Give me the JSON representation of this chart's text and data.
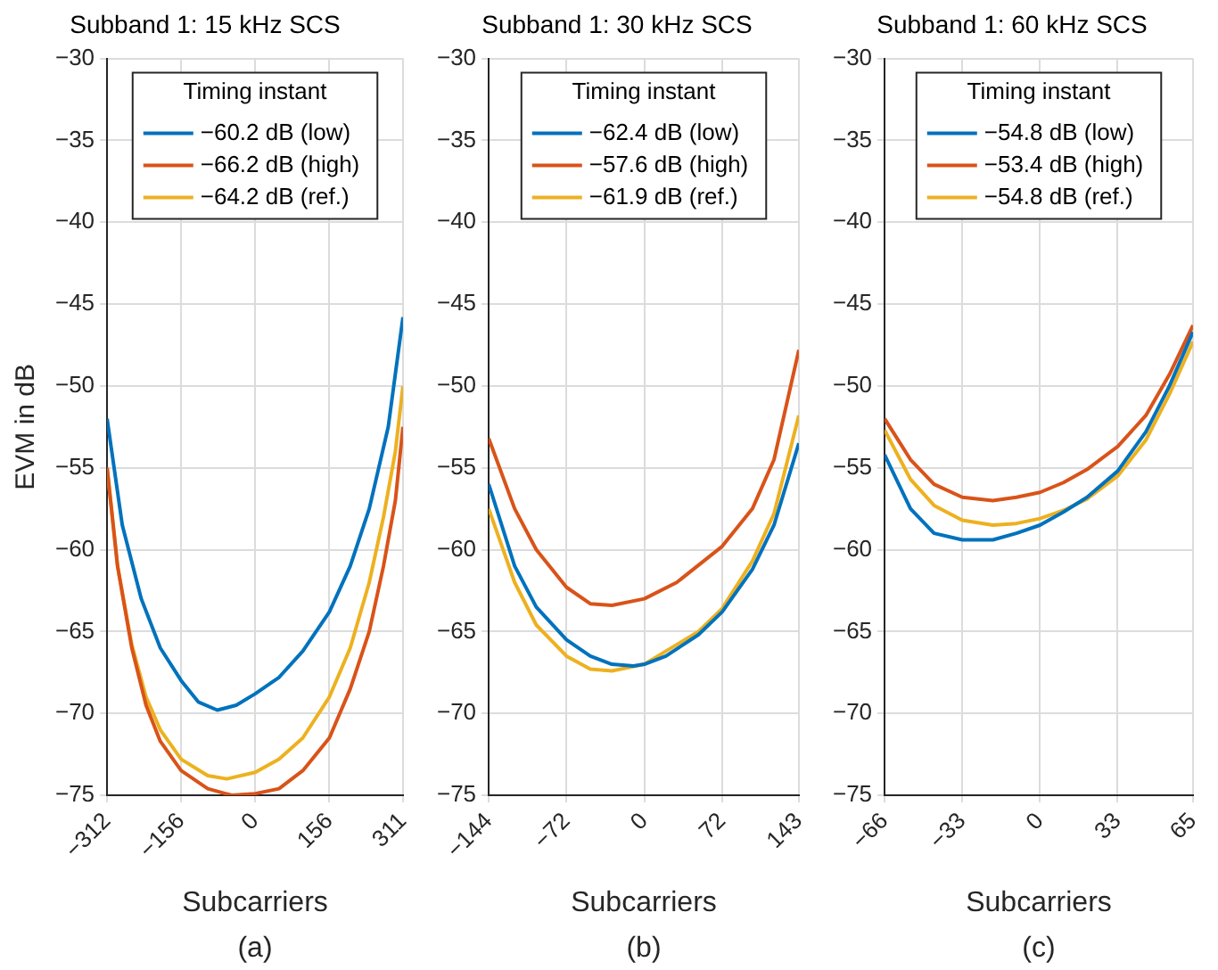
{
  "chart_data": [
    {
      "type": "line",
      "title": "Subband 1: 15 kHz SCS",
      "xlabel": "Subcarriers",
      "ylabel": "EVM in dB",
      "legend_title": "Timing instant",
      "annotations": [
        "(a)"
      ],
      "xlim": [
        -312,
        311
      ],
      "xticks": [
        -312,
        -156,
        0,
        156,
        311
      ],
      "ylim": [
        -75,
        -30
      ],
      "yticks": [
        -75,
        -70,
        -65,
        -60,
        -55,
        -50,
        -45,
        -40,
        -35,
        -30
      ],
      "grid": true,
      "legend": "top",
      "marker": "none",
      "line_style": "solid",
      "series": [
        {
          "name": "−60.2 dB (low)",
          "color": "#0072bd",
          "x": [
            -312,
            -280,
            -240,
            -200,
            -156,
            -120,
            -80,
            -40,
            0,
            50,
            100,
            156,
            200,
            240,
            280,
            311
          ],
          "values": [
            -52,
            -58.5,
            -63,
            -66,
            -68,
            -69.3,
            -69.8,
            -69.5,
            -68.8,
            -67.8,
            -66.2,
            -63.8,
            -61,
            -57.5,
            -52.5,
            -45.8
          ]
        },
        {
          "name": "−66.2 dB (high)",
          "color": "#d95319",
          "x": [
            -312,
            -290,
            -260,
            -230,
            -200,
            -156,
            -100,
            -50,
            0,
            50,
            100,
            156,
            200,
            240,
            270,
            295,
            311
          ],
          "values": [
            -55,
            -61,
            -66,
            -69.5,
            -71.7,
            -73.5,
            -74.6,
            -75,
            -74.9,
            -74.6,
            -73.5,
            -71.5,
            -68.5,
            -65,
            -61,
            -57,
            -52.5
          ]
        },
        {
          "name": "−64.2 dB (ref.)",
          "color": "#edb120",
          "x": [
            -312,
            -290,
            -260,
            -230,
            -200,
            -156,
            -100,
            -60,
            0,
            50,
            100,
            156,
            200,
            240,
            270,
            295,
            311
          ],
          "values": [
            -55,
            -61,
            -65.8,
            -69,
            -71,
            -72.8,
            -73.8,
            -74,
            -73.6,
            -72.8,
            -71.5,
            -69,
            -66,
            -62,
            -58,
            -54,
            -50
          ]
        }
      ]
    },
    {
      "type": "line",
      "title": "Subband 1: 30 kHz SCS",
      "xlabel": "Subcarriers",
      "legend_title": "Timing instant",
      "annotations": [
        "(b)"
      ],
      "xlim": [
        -144,
        143
      ],
      "xticks": [
        -144,
        -72,
        0,
        72,
        143
      ],
      "ylim": [
        -75,
        -30
      ],
      "yticks": [
        -75,
        -70,
        -65,
        -60,
        -55,
        -50,
        -45,
        -40,
        -35,
        -30
      ],
      "grid": true,
      "legend": "top",
      "marker": "none",
      "line_style": "solid",
      "series": [
        {
          "name": "−62.4 dB (low)",
          "color": "#0072bd",
          "x": [
            -144,
            -120,
            -100,
            -72,
            -50,
            -30,
            -10,
            0,
            20,
            50,
            72,
            100,
            120,
            143
          ],
          "values": [
            -56,
            -61,
            -63.5,
            -65.5,
            -66.5,
            -67,
            -67.1,
            -67,
            -66.5,
            -65.2,
            -63.8,
            -61.2,
            -58.5,
            -53.5
          ]
        },
        {
          "name": "−57.6 dB (high)",
          "color": "#d95319",
          "x": [
            -144,
            -120,
            -100,
            -72,
            -50,
            -30,
            0,
            30,
            72,
            100,
            120,
            143
          ],
          "values": [
            -53.2,
            -57.5,
            -60,
            -62.3,
            -63.3,
            -63.4,
            -63,
            -62,
            -59.8,
            -57.5,
            -54.5,
            -47.8
          ]
        },
        {
          "name": "−61.9 dB (ref.)",
          "color": "#edb120",
          "x": [
            -144,
            -120,
            -100,
            -72,
            -50,
            -30,
            0,
            20,
            50,
            72,
            100,
            120,
            143
          ],
          "values": [
            -57.5,
            -62,
            -64.6,
            -66.5,
            -67.3,
            -67.4,
            -67,
            -66.2,
            -65,
            -63.6,
            -60.7,
            -57.8,
            -51.8
          ]
        }
      ]
    },
    {
      "type": "line",
      "title": "Subband 1: 60 kHz SCS",
      "xlabel": "Subcarriers",
      "legend_title": "Timing instant",
      "annotations": [
        "(c)"
      ],
      "xlim": [
        -66,
        65
      ],
      "xticks": [
        -66,
        -33,
        0,
        33,
        65
      ],
      "ylim": [
        -75,
        -30
      ],
      "yticks": [
        -75,
        -70,
        -65,
        -60,
        -55,
        -50,
        -45,
        -40,
        -35,
        -30
      ],
      "grid": true,
      "legend": "top",
      "marker": "none",
      "line_style": "solid",
      "series": [
        {
          "name": "−54.8 dB (low)",
          "color": "#0072bd",
          "x": [
            -66,
            -55,
            -45,
            -33,
            -20,
            -10,
            0,
            10,
            20,
            33,
            45,
            55,
            65
          ],
          "values": [
            -54.2,
            -57.5,
            -59,
            -59.4,
            -59.4,
            -59,
            -58.5,
            -57.7,
            -56.8,
            -55.2,
            -52.8,
            -50,
            -46.7
          ]
        },
        {
          "name": "−53.4 dB (high)",
          "color": "#d95319",
          "x": [
            -66,
            -55,
            -45,
            -33,
            -20,
            -10,
            0,
            10,
            20,
            33,
            45,
            55,
            65
          ],
          "values": [
            -52,
            -54.5,
            -56,
            -56.8,
            -57,
            -56.8,
            -56.5,
            -55.9,
            -55.1,
            -53.7,
            -51.8,
            -49.3,
            -46.3
          ]
        },
        {
          "name": "−54.8 dB (ref.)",
          "color": "#edb120",
          "x": [
            -66,
            -55,
            -45,
            -33,
            -20,
            -10,
            0,
            10,
            20,
            33,
            45,
            55,
            65
          ],
          "values": [
            -52.7,
            -55.7,
            -57.3,
            -58.2,
            -58.5,
            -58.4,
            -58.1,
            -57.6,
            -56.9,
            -55.5,
            -53.3,
            -50.5,
            -47.3
          ]
        }
      ]
    }
  ]
}
